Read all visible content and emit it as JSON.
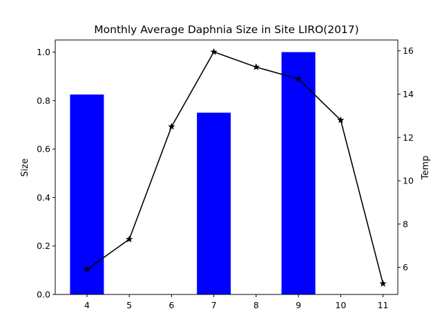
{
  "chart_data": {
    "type": "bar",
    "title": "Monthly Average Daphnia Size in Site LIRO(2017)",
    "xlabel": "",
    "ylabel": "Size",
    "y2label": "Temp",
    "categories": [
      4,
      5,
      6,
      7,
      8,
      9,
      10,
      11
    ],
    "xlim": [
      3.25,
      11.35
    ],
    "ylim": [
      0,
      1.05
    ],
    "y2lim": [
      4.75,
      16.5
    ],
    "yticks": [
      0.0,
      0.2,
      0.4,
      0.6,
      0.8,
      1.0
    ],
    "ytick_labels": [
      "0.0",
      "0.2",
      "0.4",
      "0.6",
      "0.8",
      "1.0"
    ],
    "y2ticks": [
      6,
      8,
      10,
      12,
      14,
      16
    ],
    "y2tick_labels": [
      "6",
      "8",
      "10",
      "12",
      "14",
      "16"
    ],
    "xtick_labels": [
      "4",
      "5",
      "6",
      "7",
      "8",
      "9",
      "10",
      "11"
    ],
    "grid": false,
    "bar_width": 0.8,
    "series": [
      {
        "kind": "bar",
        "axis": "left",
        "color": "#0000ff",
        "x": [
          4,
          7,
          9
        ],
        "values": [
          0.825,
          0.75,
          1.0
        ]
      },
      {
        "kind": "line",
        "axis": "right",
        "color": "#000000",
        "marker": "star",
        "x": [
          4,
          5,
          6,
          7,
          8,
          9,
          10,
          11
        ],
        "values": [
          5.9,
          7.3,
          12.5,
          15.95,
          15.25,
          14.7,
          12.8,
          5.25
        ]
      }
    ]
  }
}
